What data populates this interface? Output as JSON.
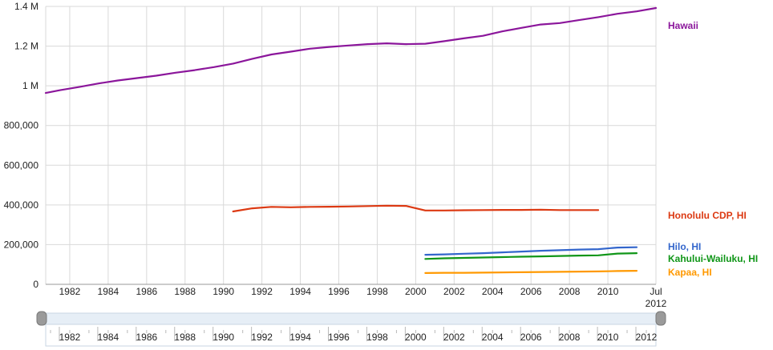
{
  "chart_data": {
    "type": "line",
    "title": "",
    "xlabel": "",
    "ylabel": "",
    "xlim": [
      1980.75,
      2012.5
    ],
    "ylim": [
      0,
      1400000
    ],
    "grid": true,
    "legend": "direct labels at right",
    "x_ticks": [
      {
        "value": 1982,
        "label": "1982"
      },
      {
        "value": 1984,
        "label": "1984"
      },
      {
        "value": 1986,
        "label": "1986"
      },
      {
        "value": 1988,
        "label": "1988"
      },
      {
        "value": 1990,
        "label": "1990"
      },
      {
        "value": 1992,
        "label": "1992"
      },
      {
        "value": 1994,
        "label": "1994"
      },
      {
        "value": 1996,
        "label": "1996"
      },
      {
        "value": 1998,
        "label": "1998"
      },
      {
        "value": 2000,
        "label": "2000"
      },
      {
        "value": 2002,
        "label": "2002"
      },
      {
        "value": 2004,
        "label": "2004"
      },
      {
        "value": 2006,
        "label": "2006"
      },
      {
        "value": 2008,
        "label": "2008"
      },
      {
        "value": 2010,
        "label": "2010"
      }
    ],
    "end_tick": {
      "value": 2012.5,
      "label_top": "Jul",
      "label_bottom": "2012"
    },
    "y_ticks": [
      {
        "value": 0,
        "label": "0"
      },
      {
        "value": 200000,
        "label": "200,000"
      },
      {
        "value": 400000,
        "label": "400,000"
      },
      {
        "value": 600000,
        "label": "600,000"
      },
      {
        "value": 800000,
        "label": "800,000"
      },
      {
        "value": 1000000,
        "label": "1 M"
      },
      {
        "value": 1200000,
        "label": "1.2 M"
      },
      {
        "value": 1400000,
        "label": "1.4 M"
      }
    ],
    "series": [
      {
        "name": "Hawaii",
        "color": "#8b169b",
        "x": [
          1980.75,
          1981.5,
          1982.5,
          1983.5,
          1984.5,
          1985.5,
          1986.5,
          1987.5,
          1988.5,
          1989.5,
          1990.5,
          1991.5,
          1992.5,
          1993.5,
          1994.5,
          1995.5,
          1996.5,
          1997.5,
          1998.5,
          1999.5,
          2000.5,
          2001.5,
          2002.5,
          2003.5,
          2004.5,
          2005.5,
          2006.5,
          2007.5,
          2008.5,
          2009.5,
          2010.5,
          2011.5,
          2012.5
        ],
        "values": [
          964000,
          978000,
          994000,
          1012000,
          1027000,
          1039000,
          1051000,
          1066000,
          1079000,
          1094000,
          1112000,
          1136000,
          1158000,
          1172000,
          1187000,
          1196000,
          1203000,
          1210000,
          1214000,
          1210000,
          1212000,
          1225000,
          1239000,
          1252000,
          1274000,
          1292000,
          1309000,
          1316000,
          1331000,
          1346000,
          1363000,
          1375000,
          1392000
        ]
      },
      {
        "name": "Honolulu CDP, HI",
        "color": "#dc3912",
        "x": [
          1990.5,
          1991.5,
          1992.5,
          1993.5,
          1994.5,
          1995.5,
          1996.5,
          1997.5,
          1998.5,
          1999.5,
          2000.5,
          2001.5,
          2002.5,
          2003.5,
          2004.5,
          2005.5,
          2006.5,
          2007.5,
          2008.5,
          2009.5
        ],
        "values": [
          367000,
          383000,
          390000,
          388000,
          390000,
          391000,
          392000,
          394000,
          396000,
          395000,
          372000,
          372000,
          373000,
          374000,
          375000,
          375000,
          376000,
          374000,
          374000,
          374000
        ]
      },
      {
        "name": "Hilo, HI",
        "color": "#3366cc",
        "x": [
          2000.5,
          2001.5,
          2002.5,
          2003.5,
          2004.5,
          2005.5,
          2006.5,
          2007.5,
          2008.5,
          2009.5,
          2010.5,
          2011.5
        ],
        "values": [
          149000,
          151000,
          154000,
          157000,
          161000,
          165000,
          169000,
          172000,
          175000,
          177000,
          185000,
          187000
        ]
      },
      {
        "name": "Kahului-Wailuku, HI",
        "color": "#109618",
        "x": [
          2000.5,
          2001.5,
          2002.5,
          2003.5,
          2004.5,
          2005.5,
          2006.5,
          2007.5,
          2008.5,
          2009.5,
          2010.5,
          2011.5
        ],
        "values": [
          128000,
          131000,
          133000,
          135000,
          137000,
          139000,
          141000,
          143000,
          145000,
          146000,
          155000,
          157000
        ]
      },
      {
        "name": "Kapaa, HI",
        "color": "#ff9900",
        "x": [
          2000.5,
          2001.5,
          2002.5,
          2003.5,
          2004.5,
          2005.5,
          2006.5,
          2007.5,
          2008.5,
          2009.5,
          2010.5,
          2011.5
        ],
        "values": [
          57000,
          58000,
          58000,
          59000,
          60000,
          61000,
          62000,
          63000,
          64000,
          65000,
          67000,
          68000
        ]
      }
    ],
    "range_slider": {
      "x_ticks": [
        "1982",
        "1984",
        "1986",
        "1988",
        "1990",
        "1992",
        "1994",
        "1996",
        "1998",
        "2000",
        "2002",
        "2004",
        "2006",
        "2008",
        "2010",
        "2012"
      ]
    }
  }
}
